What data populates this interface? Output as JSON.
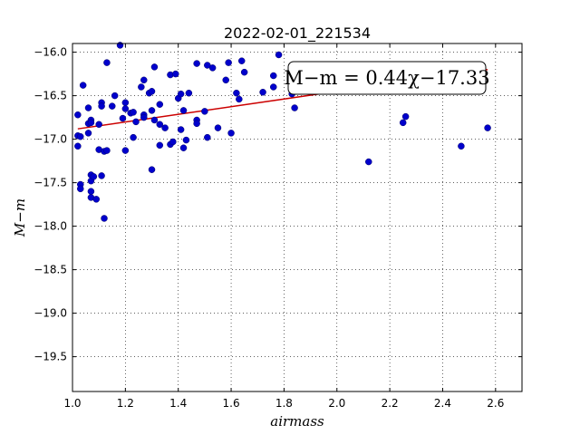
{
  "chart_data": {
    "type": "scatter",
    "title": "2022-02-01_221534",
    "xlabel": "airmass",
    "ylabel": "M−m",
    "xlim": [
      1.0,
      2.7
    ],
    "ylim": [
      -19.9,
      -15.9
    ],
    "xticks": [
      1.0,
      1.2,
      1.4,
      1.6,
      1.8,
      2.0,
      2.2,
      2.4,
      2.6
    ],
    "yticks": [
      -16.0,
      -16.5,
      -17.0,
      -17.5,
      -18.0,
      -18.5,
      -19.0,
      -19.5
    ],
    "xtick_labels": [
      "1.0",
      "1.2",
      "1.4",
      "1.6",
      "1.8",
      "2.0",
      "2.2",
      "2.4",
      "2.6"
    ],
    "ytick_labels": [
      "−16.0",
      "−16.5",
      "−17.0",
      "−17.5",
      "−18.0",
      "−18.5",
      "−19.0",
      "−19.5"
    ],
    "grid": true,
    "annotation": "M−m = 0.44χ−17.33",
    "annotation_placement": "top-right",
    "point_color": "#0000cc",
    "fit_color": "#cc0000",
    "fit": {
      "slope": 0.44,
      "intercept": -17.33
    },
    "points": [
      {
        "x": 1.02,
        "y": -16.72
      },
      {
        "x": 1.02,
        "y": -16.96
      },
      {
        "x": 1.02,
        "y": -17.08
      },
      {
        "x": 1.03,
        "y": -16.97
      },
      {
        "x": 1.04,
        "y": -16.38
      },
      {
        "x": 1.03,
        "y": -17.52
      },
      {
        "x": 1.03,
        "y": -17.57
      },
      {
        "x": 1.06,
        "y": -16.64
      },
      {
        "x": 1.06,
        "y": -16.82
      },
      {
        "x": 1.07,
        "y": -16.78
      },
      {
        "x": 1.07,
        "y": -16.81
      },
      {
        "x": 1.06,
        "y": -16.93
      },
      {
        "x": 1.07,
        "y": -17.41
      },
      {
        "x": 1.07,
        "y": -17.48
      },
      {
        "x": 1.08,
        "y": -17.43
      },
      {
        "x": 1.07,
        "y": -17.6
      },
      {
        "x": 1.07,
        "y": -17.67
      },
      {
        "x": 1.09,
        "y": -17.69
      },
      {
        "x": 1.1,
        "y": -16.83
      },
      {
        "x": 1.1,
        "y": -17.12
      },
      {
        "x": 1.11,
        "y": -16.58
      },
      {
        "x": 1.11,
        "y": -16.62
      },
      {
        "x": 1.12,
        "y": -17.14
      },
      {
        "x": 1.11,
        "y": -17.42
      },
      {
        "x": 1.13,
        "y": -16.12
      },
      {
        "x": 1.13,
        "y": -17.13
      },
      {
        "x": 1.12,
        "y": -17.91
      },
      {
        "x": 1.15,
        "y": -16.62
      },
      {
        "x": 1.16,
        "y": -16.5
      },
      {
        "x": 1.18,
        "y": -15.92
      },
      {
        "x": 1.2,
        "y": -16.58
      },
      {
        "x": 1.2,
        "y": -16.65
      },
      {
        "x": 1.19,
        "y": -16.76
      },
      {
        "x": 1.2,
        "y": -17.13
      },
      {
        "x": 1.22,
        "y": -16.7
      },
      {
        "x": 1.23,
        "y": -16.69
      },
      {
        "x": 1.24,
        "y": -16.8
      },
      {
        "x": 1.23,
        "y": -16.98
      },
      {
        "x": 1.26,
        "y": -16.4
      },
      {
        "x": 1.27,
        "y": -16.32
      },
      {
        "x": 1.27,
        "y": -16.72
      },
      {
        "x": 1.27,
        "y": -16.75
      },
      {
        "x": 1.29,
        "y": -16.47
      },
      {
        "x": 1.3,
        "y": -16.45
      },
      {
        "x": 1.3,
        "y": -16.67
      },
      {
        "x": 1.31,
        "y": -16.17
      },
      {
        "x": 1.31,
        "y": -16.78
      },
      {
        "x": 1.3,
        "y": -17.35
      },
      {
        "x": 1.33,
        "y": -16.6
      },
      {
        "x": 1.33,
        "y": -16.83
      },
      {
        "x": 1.33,
        "y": -17.07
      },
      {
        "x": 1.35,
        "y": -16.87
      },
      {
        "x": 1.37,
        "y": -16.26
      },
      {
        "x": 1.37,
        "y": -17.06
      },
      {
        "x": 1.38,
        "y": -17.03
      },
      {
        "x": 1.39,
        "y": -16.25
      },
      {
        "x": 1.4,
        "y": -16.53
      },
      {
        "x": 1.41,
        "y": -16.48
      },
      {
        "x": 1.41,
        "y": -16.89
      },
      {
        "x": 1.42,
        "y": -16.67
      },
      {
        "x": 1.42,
        "y": -17.1
      },
      {
        "x": 1.43,
        "y": -17.01
      },
      {
        "x": 1.44,
        "y": -16.47
      },
      {
        "x": 1.47,
        "y": -16.13
      },
      {
        "x": 1.47,
        "y": -16.78
      },
      {
        "x": 1.47,
        "y": -16.82
      },
      {
        "x": 1.5,
        "y": -16.68
      },
      {
        "x": 1.51,
        "y": -16.15
      },
      {
        "x": 1.51,
        "y": -16.98
      },
      {
        "x": 1.53,
        "y": -16.18
      },
      {
        "x": 1.55,
        "y": -16.87
      },
      {
        "x": 1.58,
        "y": -16.32
      },
      {
        "x": 1.59,
        "y": -16.12
      },
      {
        "x": 1.6,
        "y": -16.93
      },
      {
        "x": 1.62,
        "y": -16.47
      },
      {
        "x": 1.63,
        "y": -16.54
      },
      {
        "x": 1.64,
        "y": -16.1
      },
      {
        "x": 1.65,
        "y": -16.23
      },
      {
        "x": 1.72,
        "y": -16.46
      },
      {
        "x": 1.76,
        "y": -16.27
      },
      {
        "x": 1.76,
        "y": -16.4
      },
      {
        "x": 1.78,
        "y": -16.03
      },
      {
        "x": 1.83,
        "y": -16.48
      },
      {
        "x": 1.84,
        "y": -16.64
      },
      {
        "x": 2.12,
        "y": -17.26
      },
      {
        "x": 2.25,
        "y": -16.81
      },
      {
        "x": 2.26,
        "y": -16.74
      },
      {
        "x": 2.47,
        "y": -17.08
      },
      {
        "x": 2.57,
        "y": -16.87
      }
    ]
  }
}
